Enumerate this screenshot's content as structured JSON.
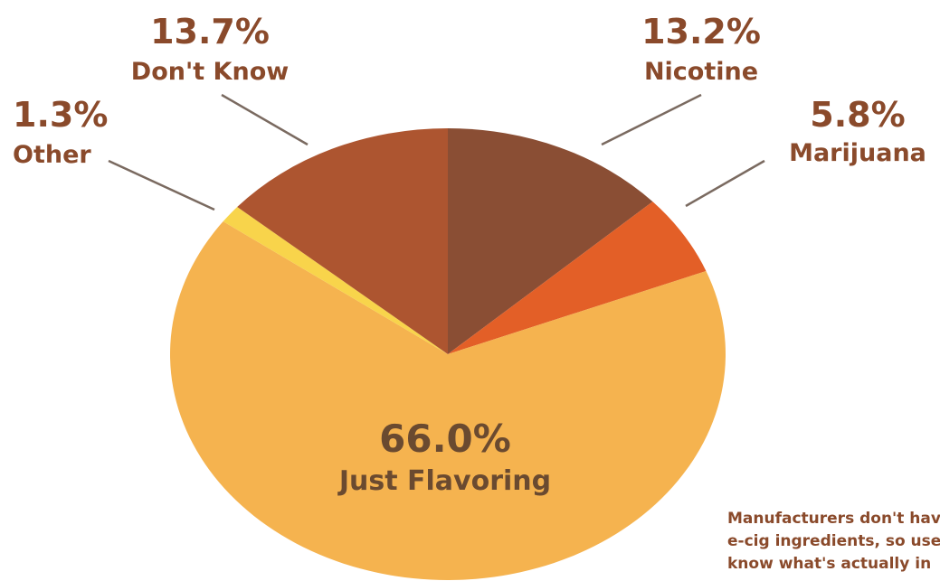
{
  "chart_data": {
    "type": "pie",
    "slices": [
      {
        "label": "Nicotine",
        "value": 13.2,
        "display": "13.2%",
        "color": "#8a4e34"
      },
      {
        "label": "Marijuana",
        "value": 5.8,
        "display": "5.8%",
        "color": "#e35f27"
      },
      {
        "label": "Just Flavoring",
        "value": 66.0,
        "display": "66.0%",
        "color": "#f5b34f"
      },
      {
        "label": "Other",
        "value": 1.3,
        "display": "1.3%",
        "color": "#f8d44b"
      },
      {
        "label": "Don't Know",
        "value": 13.7,
        "display": "13.7%",
        "color": "#ad5530"
      }
    ]
  },
  "colors": {
    "label_text": "#8a4a2b",
    "center_text": "#6a4a30",
    "leader_line": "#7a6a60"
  },
  "note": {
    "lines": [
      "Manufacturers don't hav",
      "e-cig ingredients, so use",
      "know what's actually in"
    ]
  }
}
